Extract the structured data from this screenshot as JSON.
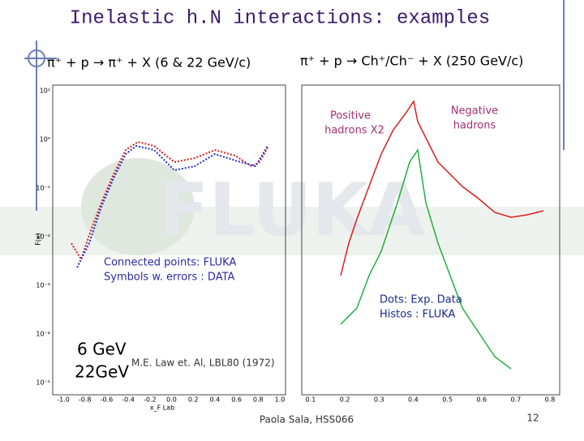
{
  "title": "Inelastic h.N interactions: examples",
  "watermark": "FLUKA",
  "left": {
    "heading": "π⁺ + p → π⁺ + X (6 & 22 GeV/c)",
    "ylabel": "F(x)",
    "xlabel": "x_F Lab",
    "yticks": [
      "10¹",
      "10⁰",
      "10⁻¹",
      "10⁻²",
      "10⁻³",
      "10⁻⁴",
      "10⁻⁵"
    ],
    "xticks": [
      "-1.0",
      "-0.8",
      "-0.6",
      "-0.4",
      "-0.2",
      "0.0",
      "0.2",
      "0.4",
      "0.6",
      "0.8",
      "1.0"
    ],
    "notes": [
      "Connected points: FLUKA",
      "Symbols w. errors : DATA"
    ],
    "energies": [
      "6 GeV",
      "22GeV"
    ],
    "reference": "M.E. Law et. Al, LBL80 (1972)"
  },
  "right": {
    "heading": "π⁺ + p → Ch⁺/Ch⁻ + X (250 GeV/c)",
    "positive": [
      "Positive",
      "hadrons X2"
    ],
    "negative": [
      "Negative",
      "hadrons"
    ],
    "notes": [
      "Dots: Exp. Data",
      "Histos : FLUKA"
    ],
    "xticks": [
      "0.1",
      "0.2",
      "0.3",
      "0.4",
      "0.5",
      "0.6",
      "0.7",
      "0.8"
    ]
  },
  "footer": {
    "author": "Paola Sala, HSS066",
    "page": "12"
  }
}
